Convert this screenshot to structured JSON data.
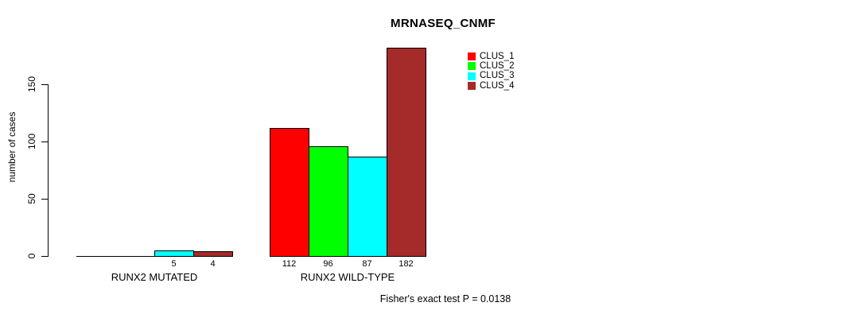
{
  "chart_data": {
    "type": "bar",
    "title": "MRNASEQ_CNMF",
    "ylabel": "number of cases",
    "xlabel": "",
    "annotation": "Fisher's exact test P = 0.0138",
    "categories": [
      "RUNX2 MUTATED",
      "RUNX2 WILD-TYPE"
    ],
    "series": [
      {
        "name": "CLUS_1",
        "color": "#FF0000",
        "values": [
          0,
          112
        ]
      },
      {
        "name": "CLUS_2",
        "color": "#00FF00",
        "values": [
          0,
          96
        ]
      },
      {
        "name": "CLUS_3",
        "color": "#00FFFF",
        "values": [
          5,
          87
        ]
      },
      {
        "name": "CLUS_4",
        "color": "#A52A2A",
        "values": [
          4,
          182
        ]
      }
    ],
    "yticks": [
      0,
      50,
      100,
      150
    ],
    "ylim": [
      0,
      182
    ],
    "grid": false,
    "legend_position": "top-right",
    "bar_value_labels_shown": true
  }
}
